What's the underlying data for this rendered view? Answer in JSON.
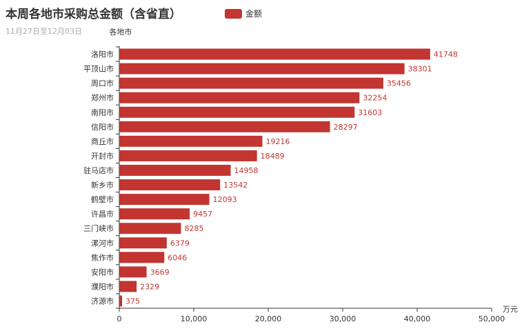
{
  "title": "本周各地市采购总金额（含省直）",
  "subtitle": "11月27日至12月03日",
  "legend": {
    "label": "金额"
  },
  "colors": {
    "bar": "#c23531",
    "axis": "#333333",
    "label": "#c23531",
    "text": "#333333"
  },
  "chart_data": {
    "type": "bar",
    "orientation": "horizontal",
    "title": "本周各地市采购总金额（含省直）",
    "subtitle": "11月27日至12月03日",
    "ylabel": "各地市",
    "xlabel": "万元",
    "xlim": [
      0,
      50000
    ],
    "x_ticks": [
      "0",
      "10,000",
      "20,000",
      "30,000",
      "40,000",
      "50,000"
    ],
    "x_tick_values": [
      0,
      10000,
      20000,
      30000,
      40000,
      50000
    ],
    "legend": "top",
    "grid": false,
    "categories": [
      "洛阳市",
      "平顶山市",
      "周口市",
      "郑州市",
      "南阳市",
      "信阳市",
      "商丘市",
      "开封市",
      "驻马店市",
      "新乡市",
      "鹤壁市",
      "许昌市",
      "三门峡市",
      "漯河市",
      "焦作市",
      "安阳市",
      "濮阳市",
      "济源市"
    ],
    "series": [
      {
        "name": "金额",
        "values": [
          41748,
          38301,
          35456,
          32254,
          31603,
          28297,
          19216,
          18489,
          14958,
          13542,
          12093,
          9457,
          8285,
          6379,
          6046,
          3669,
          2329,
          375
        ]
      }
    ]
  }
}
